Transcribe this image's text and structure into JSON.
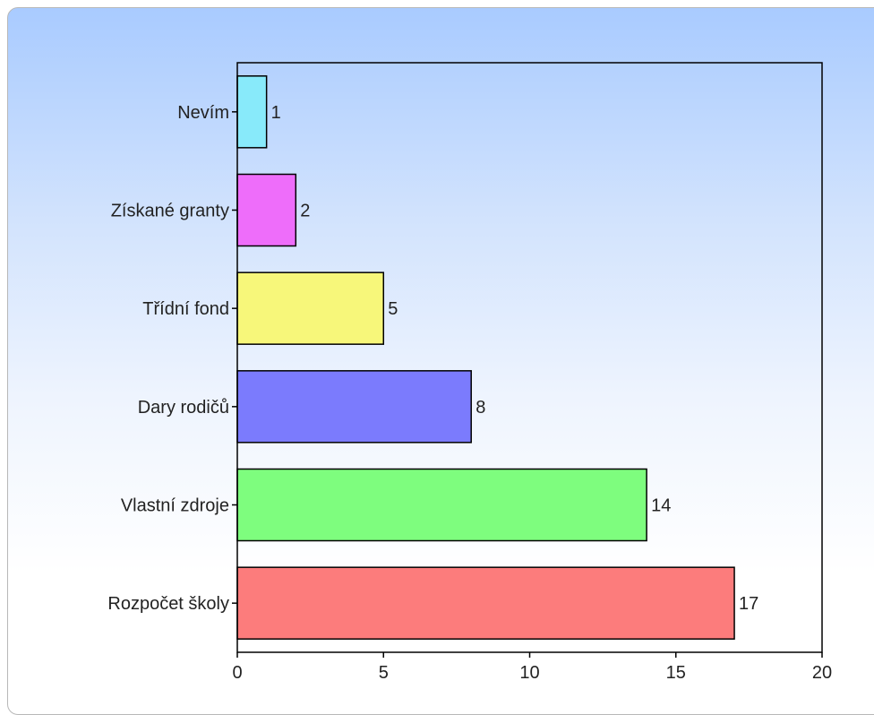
{
  "chart_data": {
    "type": "bar",
    "orientation": "horizontal",
    "categories": [
      "Nevím",
      "Získané granty",
      "Třídní fond",
      "Dary rodičů",
      "Vlastní zdroje",
      "Rozpočet školy"
    ],
    "values": [
      1,
      2,
      5,
      8,
      14,
      17
    ],
    "colors": [
      "#88eafa",
      "#ee6dfa",
      "#f7f77a",
      "#7b7bfd",
      "#7efd7e",
      "#fc7c7c"
    ],
    "xlim": [
      0,
      20
    ],
    "xticks": [
      0,
      5,
      10,
      15,
      20
    ],
    "grid": false,
    "data_labels": true,
    "title": "",
    "xlabel": "",
    "ylabel": ""
  }
}
